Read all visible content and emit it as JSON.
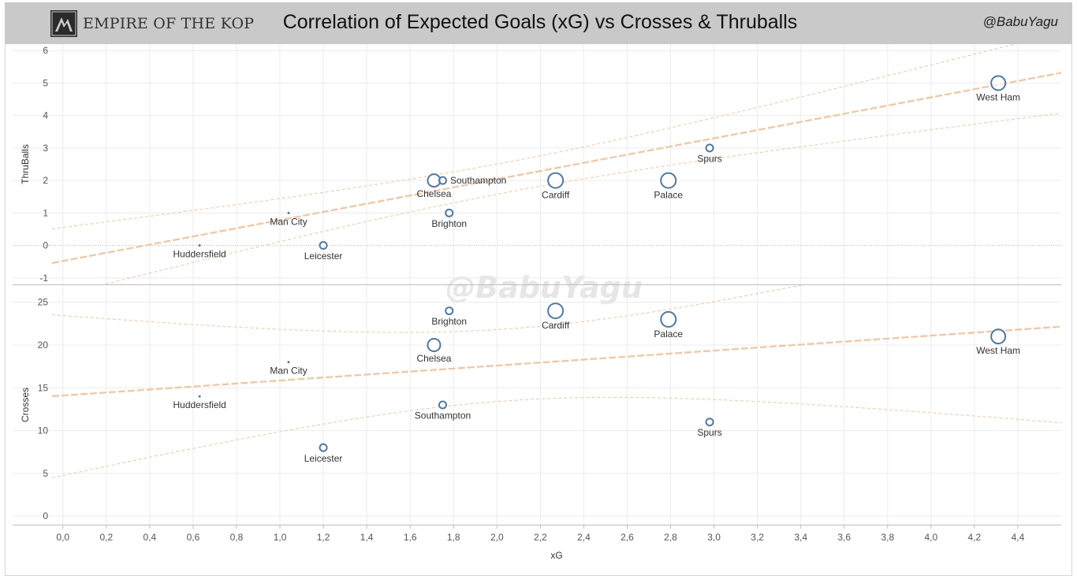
{
  "header": {
    "brand": "EMPIRE OF THE KOP",
    "title": "Correlation of Expected Goals (xG) vs Crosses & Thruballs",
    "handle": "@BabuYagu"
  },
  "watermark": "@BabuYagu",
  "colors": {
    "header_bg": "#c9c9c9",
    "marker": "#4e79a7",
    "trend": "#f5c49c",
    "grid": "#ececec"
  },
  "chart_data": {
    "type": "scatter",
    "title": "Correlation of Expected Goals (xG) vs Crosses & Thruballs",
    "x_axis": {
      "label": "xG",
      "range": [
        -0.05,
        4.6
      ],
      "ticks": [
        "0,0",
        "0,2",
        "0,4",
        "0,6",
        "0,8",
        "1,0",
        "1,2",
        "1,4",
        "1,6",
        "1,8",
        "2,0",
        "2,2",
        "2,4",
        "2,6",
        "2,8",
        "3,0",
        "3,2",
        "3,4",
        "3,6",
        "3,8",
        "4,0",
        "4,2",
        "4,4"
      ]
    },
    "panels": [
      {
        "ylabel": "ThruBalls",
        "ylim": [
          -1.2,
          6.2
        ],
        "y_ticks": [
          -1,
          0,
          1,
          2,
          3,
          4,
          5,
          6
        ],
        "zero_line": true,
        "trend": {
          "slope": 1.26,
          "intercept": -0.48
        },
        "points": [
          {
            "team": "Huddersfield",
            "x": 0.63,
            "y": 0,
            "size": 1.5
          },
          {
            "team": "Man City",
            "x": 1.04,
            "y": 1,
            "size": 1.5
          },
          {
            "team": "Leicester",
            "x": 1.2,
            "y": 0,
            "size": 4.5
          },
          {
            "team": "Chelsea",
            "x": 1.71,
            "y": 2,
            "size": 8
          },
          {
            "team": "Southampton",
            "x": 1.75,
            "y": 2,
            "size": 4.5
          },
          {
            "team": "Brighton",
            "x": 1.78,
            "y": 1,
            "size": 4.5
          },
          {
            "team": "Cardiff",
            "x": 2.27,
            "y": 2,
            "size": 9.5
          },
          {
            "team": "Palace",
            "x": 2.79,
            "y": 2,
            "size": 9.5
          },
          {
            "team": "Spurs",
            "x": 2.98,
            "y": 3,
            "size": 4.5
          },
          {
            "team": "West Ham",
            "x": 4.31,
            "y": 5,
            "size": 9
          }
        ]
      },
      {
        "ylabel": "Crosses",
        "ylim": [
          -1,
          27
        ],
        "y_ticks": [
          0,
          5,
          10,
          15,
          20,
          25
        ],
        "zero_line": false,
        "trend": {
          "slope": 1.75,
          "intercept": 14.1
        },
        "points": [
          {
            "team": "Huddersfield",
            "x": 0.63,
            "y": 14,
            "size": 1.5
          },
          {
            "team": "Man City",
            "x": 1.04,
            "y": 18,
            "size": 1.5
          },
          {
            "team": "Leicester",
            "x": 1.2,
            "y": 8,
            "size": 4.5
          },
          {
            "team": "Southampton",
            "x": 1.75,
            "y": 13,
            "size": 4.5
          },
          {
            "team": "Chelsea",
            "x": 1.71,
            "y": 20,
            "size": 8
          },
          {
            "team": "Brighton",
            "x": 1.78,
            "y": 24,
            "size": 4.5
          },
          {
            "team": "Cardiff",
            "x": 2.27,
            "y": 24,
            "size": 9.5
          },
          {
            "team": "Palace",
            "x": 2.79,
            "y": 23,
            "size": 9.5
          },
          {
            "team": "Spurs",
            "x": 2.98,
            "y": 11,
            "size": 4.5
          },
          {
            "team": "West Ham",
            "x": 4.31,
            "y": 21,
            "size": 9
          }
        ]
      }
    ],
    "grid": true
  }
}
